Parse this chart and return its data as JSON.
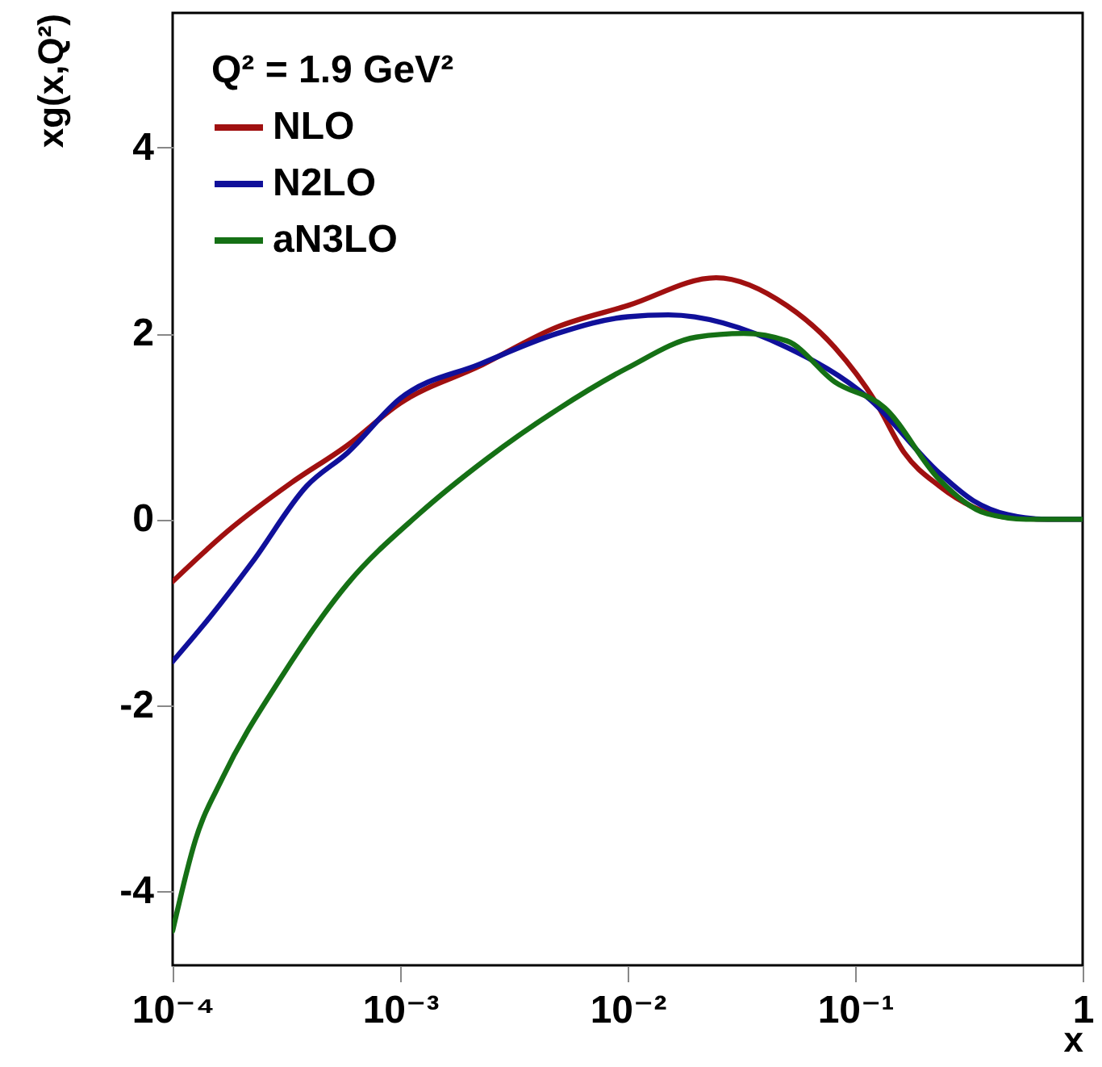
{
  "chart_data": {
    "type": "line",
    "legend_title": "Q² = 1.9 GeV²",
    "xlabel": "x",
    "ylabel": "xg(x,Q²)",
    "log": "x",
    "legend": "top left",
    "grid": false,
    "line_style": "solid",
    "marker": "none",
    "xlim": [
      0.0001,
      1
    ],
    "xticks": [
      {
        "value": 0.0001,
        "label": "10⁻⁴"
      },
      {
        "value": 0.001,
        "label": "10⁻³"
      },
      {
        "value": 0.01,
        "label": "10⁻²"
      },
      {
        "value": 0.1,
        "label": "10⁻¹"
      },
      1
    ],
    "ylim": [
      -4.8,
      5.45
    ],
    "yticks": [
      -4,
      -2,
      0,
      2,
      4
    ],
    "series": [
      {
        "name": "NLO",
        "color": "#a01010",
        "x": [
          0.0001,
          0.000174,
          0.000331,
          0.000589,
          0.001,
          0.00224,
          0.0049,
          0.01,
          0.0245,
          0.0501,
          0.0813,
          0.124,
          0.164,
          0.234,
          0.331,
          0.468,
          0.7,
          1
        ],
        "values": [
          -0.67,
          -0.13,
          0.39,
          0.8,
          1.25,
          1.65,
          2.07,
          2.3,
          2.6,
          2.3,
          1.85,
          1.25,
          0.72,
          0.36,
          0.13,
          0.02,
          0,
          0
        ]
      },
      {
        "name": "N2LO",
        "color": "#10109a",
        "x": [
          0.0001,
          0.000145,
          0.000224,
          0.000389,
          0.000589,
          0.001,
          0.00224,
          0.0049,
          0.01,
          0.0151,
          0.0501,
          0.115,
          0.234,
          0.331,
          0.468,
          0.7,
          1
        ],
        "values": [
          -1.53,
          -1.06,
          -0.46,
          0.36,
          0.72,
          1.3,
          1.67,
          2.0,
          2.18,
          2.2,
          1.85,
          1.3,
          0.5,
          0.2,
          0.05,
          0,
          0
        ]
      },
      {
        "name": "aN3LO",
        "color": "#157015",
        "x": [
          0.0001,
          0.000126,
          0.000166,
          0.000295,
          0.000589,
          0.0012,
          0.0024,
          0.0049,
          0.01,
          0.02,
          0.0324,
          0.0501,
          0.0813,
          0.135,
          0.234,
          0.38,
          0.575,
          1
        ],
        "values": [
          -4.43,
          -3.45,
          -2.78,
          -1.73,
          -0.69,
          0.05,
          0.65,
          1.18,
          1.63,
          1.96,
          2.0,
          1.92,
          1.48,
          1.2,
          0.43,
          0.06,
          0,
          0
        ]
      }
    ]
  }
}
